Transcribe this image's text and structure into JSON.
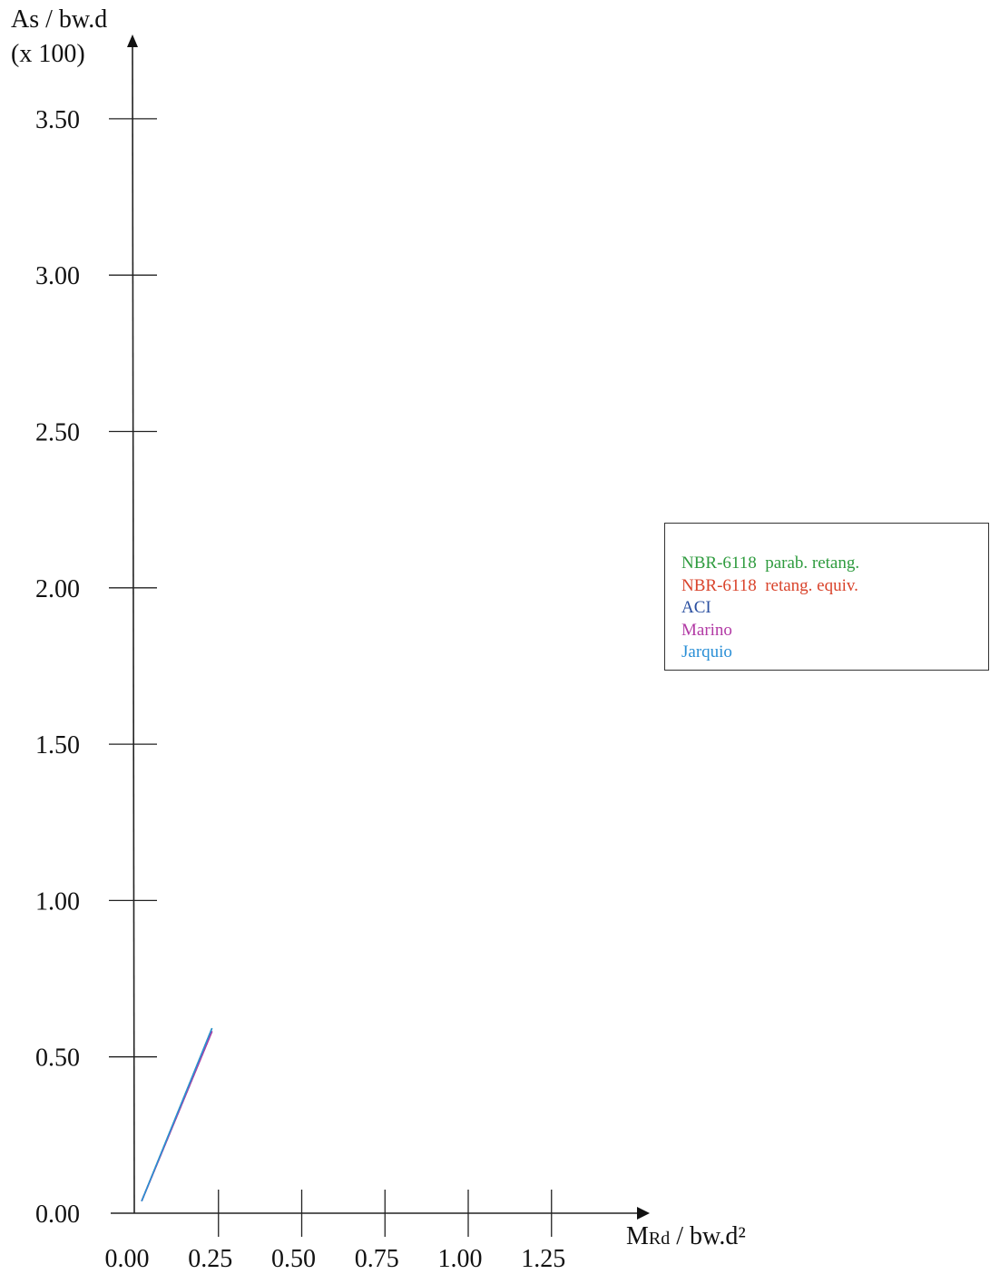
{
  "chart_data": {
    "type": "line",
    "ylabel_line1": "As / bw.d",
    "ylabel_line2": "(x 100)",
    "xlabel_main": "M",
    "xlabel_sub": "Rd",
    "xlabel_rest": " / bw.d²",
    "xlim": [
      0,
      1.25
    ],
    "ylim": [
      0,
      3.5
    ],
    "x_ticks": [
      "0.00",
      "0.25",
      "0.50",
      "0.75",
      "1.00",
      "1.25"
    ],
    "x_tick_values": [
      0,
      0.25,
      0.5,
      0.75,
      1.0,
      1.25
    ],
    "y_ticks": [
      "0.00",
      "0.50",
      "1.00",
      "1.50",
      "2.00",
      "2.50",
      "3.00",
      "3.50"
    ],
    "y_tick_values": [
      0,
      0.5,
      1.0,
      1.5,
      2.0,
      2.5,
      3.0,
      3.5
    ],
    "legend_position": "right",
    "series": [
      {
        "name": "NBR-6118  parab. retang.",
        "color": "#2e9b3e",
        "x": [
          0.02,
          0.23
        ],
        "y": [
          0.04,
          0.59
        ]
      },
      {
        "name": "NBR-6118  retang. equiv.",
        "color": "#d9432b",
        "x": [
          0.02,
          0.23
        ],
        "y": [
          0.04,
          0.58
        ]
      },
      {
        "name": "ACI",
        "color": "#2a4fa0",
        "x": [
          0.02,
          0.23
        ],
        "y": [
          0.04,
          0.58
        ]
      },
      {
        "name": "Marino",
        "color": "#b23aa5",
        "x": [
          0.02,
          0.23
        ],
        "y": [
          0.04,
          0.58
        ]
      },
      {
        "name": "Jarquio",
        "color": "#2a8fd6",
        "x": [
          0.02,
          0.23
        ],
        "y": [
          0.04,
          0.59
        ]
      }
    ]
  }
}
